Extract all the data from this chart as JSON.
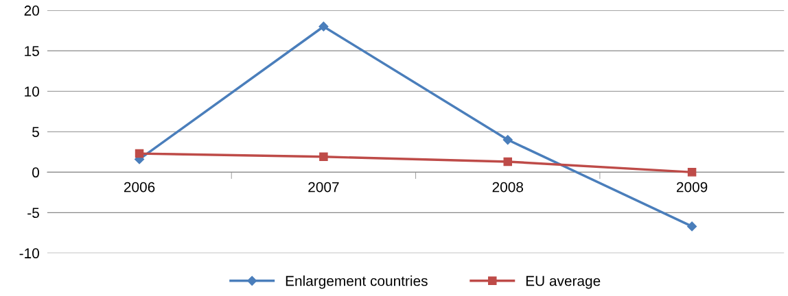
{
  "chart_data": {
    "type": "line",
    "categories": [
      "2006",
      "2007",
      "2008",
      "2009"
    ],
    "series": [
      {
        "name": "Enlargement countries",
        "color": "#4a7ebb",
        "values": [
          1.6,
          18,
          4,
          -6.7
        ],
        "marker": "diamond"
      },
      {
        "name": "EU average",
        "color": "#be4b48",
        "values": [
          2.3,
          1.9,
          1.3,
          0
        ],
        "marker": "square"
      }
    ],
    "ylim": [
      -10,
      20
    ],
    "yticks": [
      -10,
      -5,
      0,
      5,
      10,
      15,
      20
    ],
    "grid": "y",
    "legend": "bottom",
    "line_style": "solid"
  }
}
